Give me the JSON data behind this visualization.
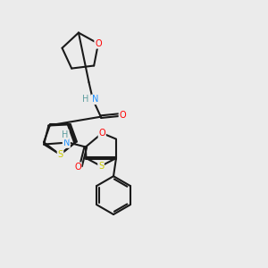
{
  "background_color": "#ebebeb",
  "bond_color": "#1a1a1a",
  "atom_colors": {
    "O": "#ff0000",
    "N": "#1e90ff",
    "S": "#cccc00",
    "H_color": "#5f9ea0",
    "C": "#1a1a1a"
  },
  "figsize": [
    3.0,
    3.0
  ],
  "dpi": 100
}
